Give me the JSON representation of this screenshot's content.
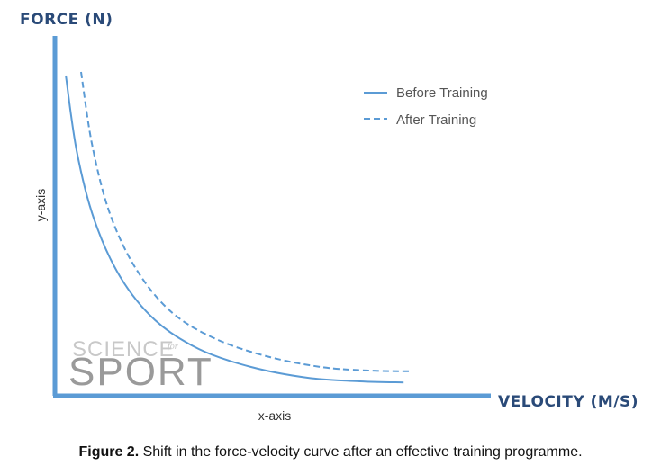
{
  "chart_data": {
    "type": "line",
    "xlabel": "VELOCITY (M/S)",
    "ylabel": "FORCE (N)",
    "x_axis_caption": "x-axis",
    "y_axis_caption": "y-axis",
    "xlim": [
      0,
      10
    ],
    "ylim": [
      0,
      10
    ],
    "grid": false,
    "legend_position": "top-right",
    "series": [
      {
        "name": "Before Training",
        "style": "solid",
        "color": "#5b9bd5",
        "x": [
          0.25,
          0.5,
          0.9,
          1.5,
          2.3,
          3.3,
          4.5,
          5.8,
          7.0,
          8.0
        ],
        "y": [
          8.9,
          6.8,
          4.9,
          3.3,
          2.1,
          1.3,
          0.8,
          0.5,
          0.4,
          0.37
        ]
      },
      {
        "name": "After Training",
        "style": "dashed",
        "color": "#5b9bd5",
        "x": [
          0.6,
          0.85,
          1.25,
          1.85,
          2.65,
          3.65,
          4.85,
          6.1,
          7.2,
          8.15
        ],
        "y": [
          9.0,
          7.0,
          5.1,
          3.55,
          2.35,
          1.6,
          1.1,
          0.8,
          0.7,
          0.68
        ]
      }
    ]
  },
  "logo": {
    "line1": "SCIENCE",
    "line1_small": "for",
    "line2": "SPORT"
  },
  "caption": {
    "label": "Figure 2.",
    "text": " Shift in the force-velocity curve after an effective training programme."
  }
}
